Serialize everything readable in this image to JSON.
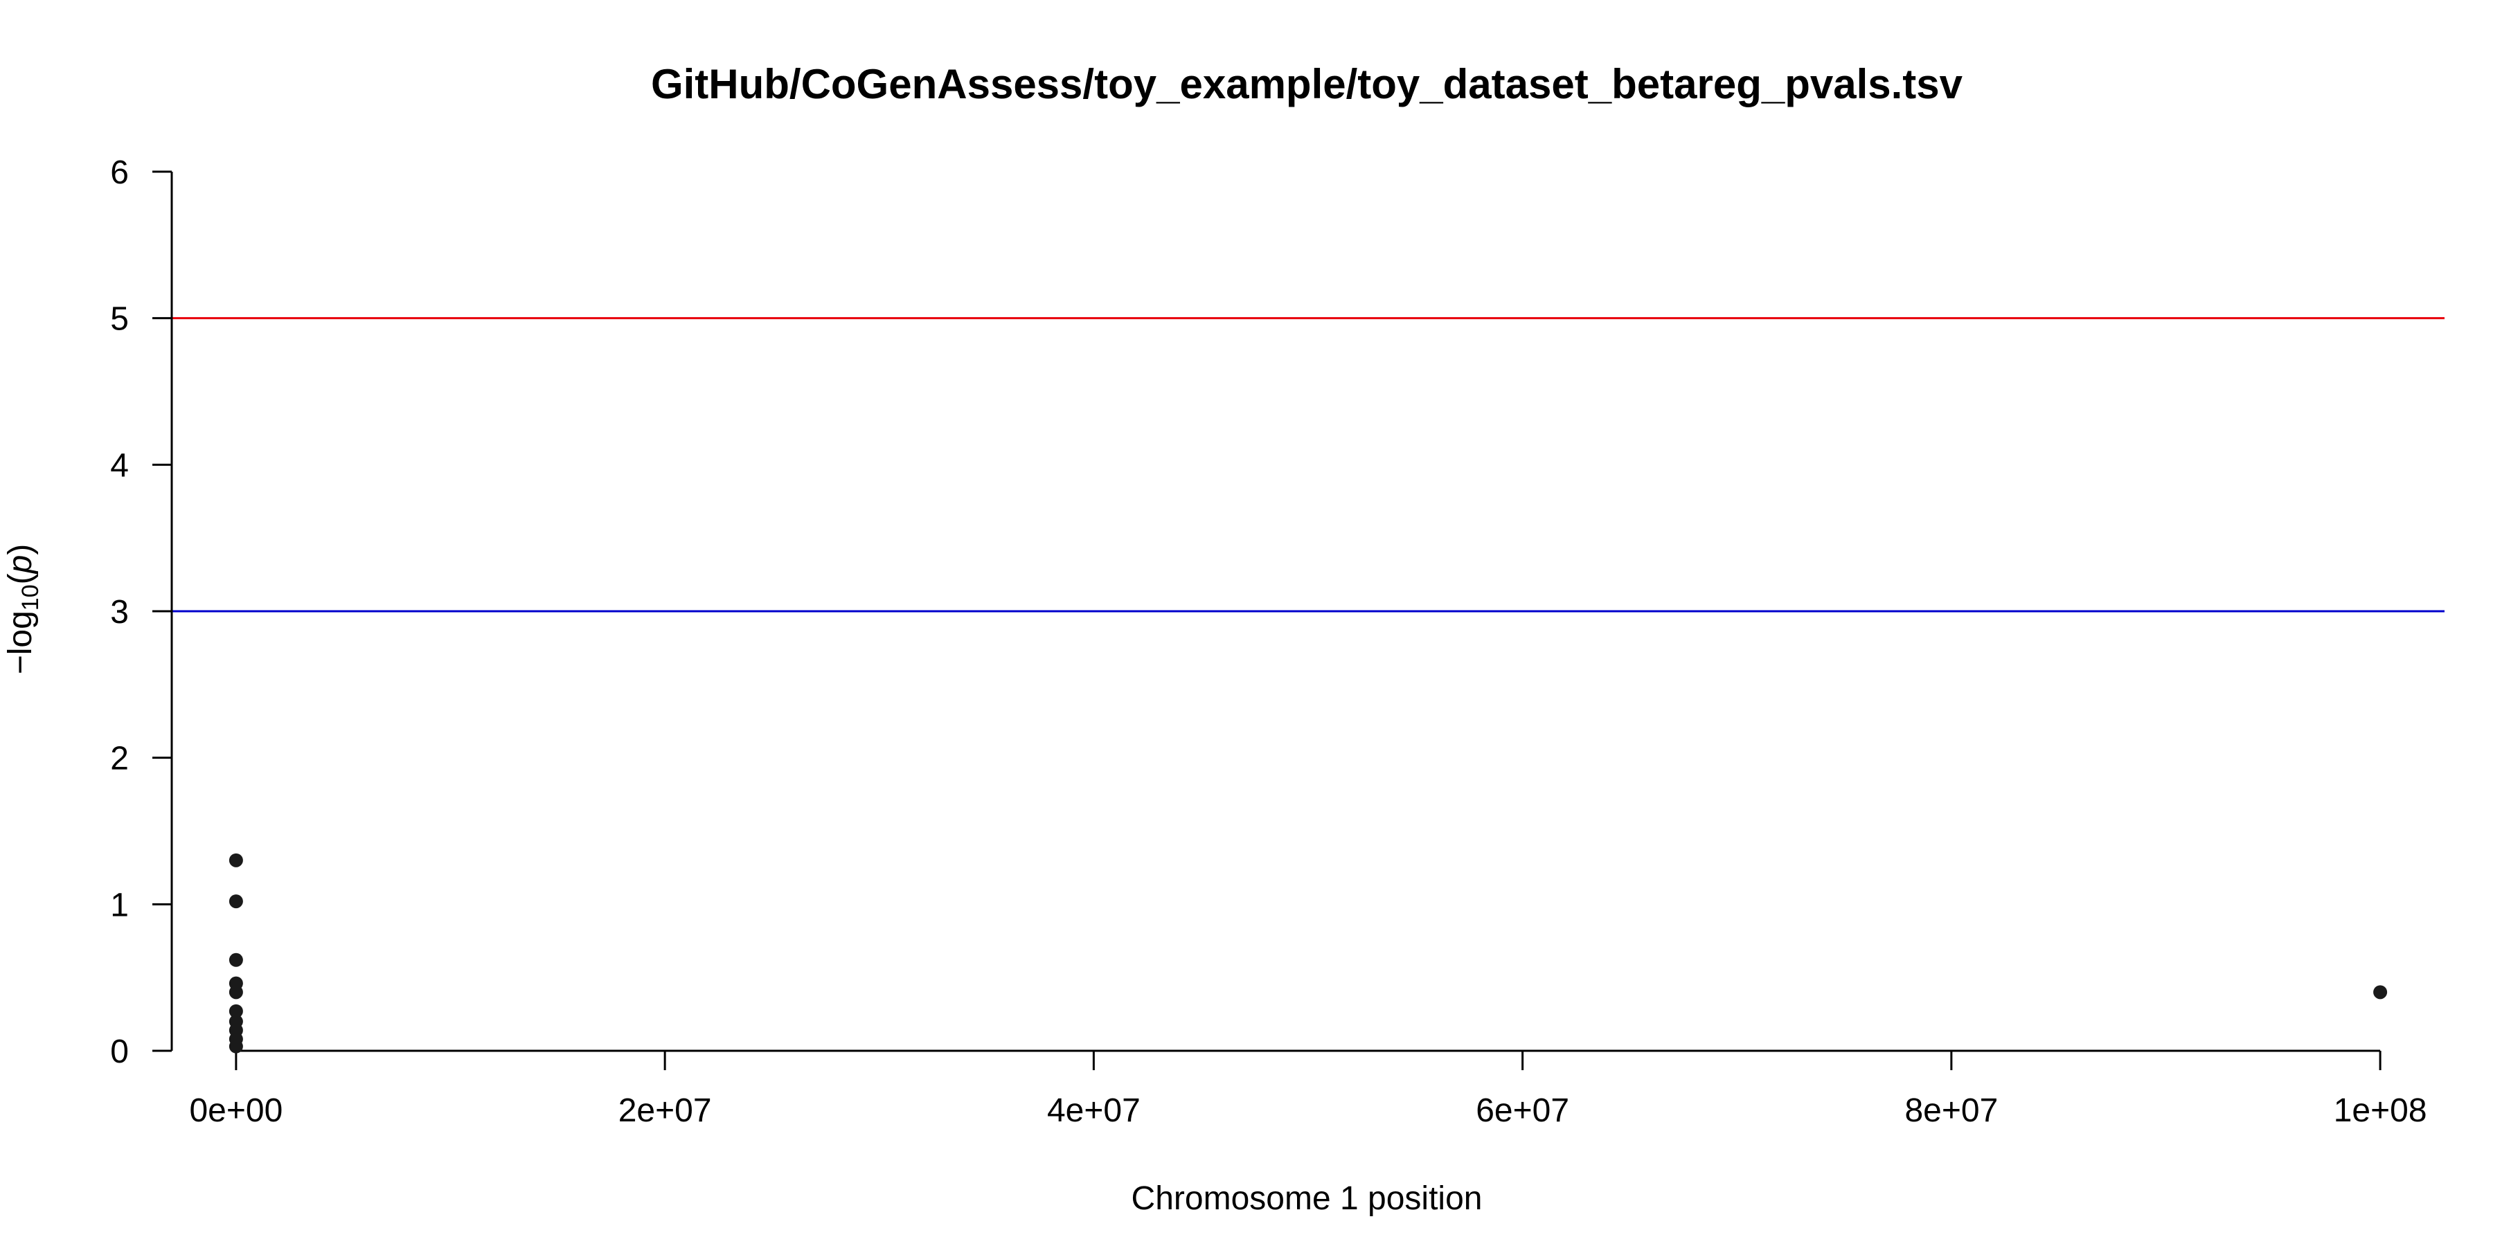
{
  "chart_data": {
    "type": "scatter",
    "title": "GitHub/CoGenAssess/toy_example/toy_dataset_betareg_pvals.tsv",
    "xlabel": "Chromosome 1 position",
    "ylabel_parts": {
      "prefix": "−log",
      "subscript": "10",
      "open": "(",
      "variable": "p",
      "close": ")"
    },
    "xlim": [
      -3000000,
      103000000
    ],
    "ylim": [
      0,
      6
    ],
    "x_ticks": [
      0,
      20000000,
      40000000,
      60000000,
      80000000,
      100000000
    ],
    "x_tick_labels": [
      "0e+00",
      "2e+07",
      "4e+07",
      "6e+07",
      "8e+07",
      "1e+08"
    ],
    "y_ticks": [
      0,
      1,
      2,
      3,
      4,
      5,
      6
    ],
    "y_tick_labels": [
      "0",
      "1",
      "2",
      "3",
      "4",
      "5",
      "6"
    ],
    "reference_lines": [
      {
        "y": 5,
        "color": "#e8000b"
      },
      {
        "y": 3,
        "color": "#0000cc"
      }
    ],
    "point_color": "#1a1a1a",
    "points": [
      {
        "x": 0,
        "y": 1.3
      },
      {
        "x": 0,
        "y": 1.02
      },
      {
        "x": 0,
        "y": 0.62
      },
      {
        "x": 0,
        "y": 0.46
      },
      {
        "x": 0,
        "y": 0.4
      },
      {
        "x": 0,
        "y": 0.27
      },
      {
        "x": 0,
        "y": 0.2
      },
      {
        "x": 0,
        "y": 0.14
      },
      {
        "x": 0,
        "y": 0.08
      },
      {
        "x": 0,
        "y": 0.03
      },
      {
        "x": 100000000,
        "y": 0.4
      }
    ]
  }
}
